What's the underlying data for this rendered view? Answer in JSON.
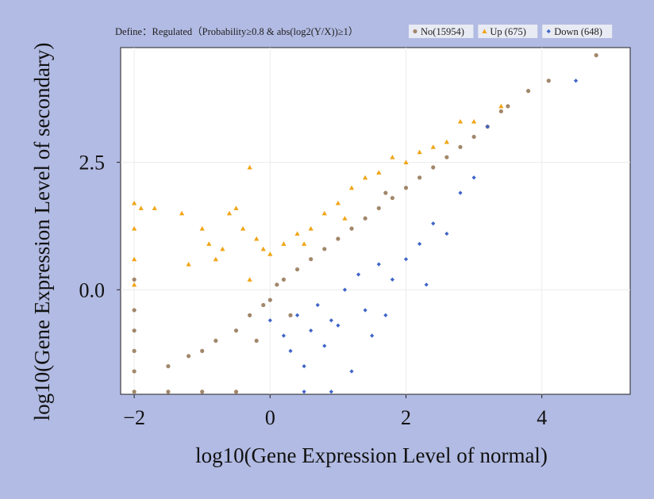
{
  "chart_data": {
    "type": "scatter",
    "title": "Define：Regulated（Probability≥0.8 & abs(log2(Y/X))≥1）",
    "xlabel": "log10(Gene Expression Level of normal)",
    "ylabel": "log10(Gene Expression Level of secondary)",
    "xlim": [
      -2.2,
      5.3
    ],
    "ylim": [
      -2.05,
      4.75
    ],
    "xticks": [
      -2,
      0,
      2,
      4
    ],
    "yticks": [
      0.0,
      2.5
    ],
    "xtick_labels": [
      "−2",
      "0",
      "2",
      "4"
    ],
    "ytick_labels": [
      "0.0",
      "2.5"
    ],
    "grid": true,
    "legend_position": "top-right",
    "series": [
      {
        "name": "No(15954)",
        "color": "#a2876b",
        "marker": "circle",
        "x": [
          -2.0,
          -2.0,
          -2.0,
          -2.0,
          -2.0,
          -2.0,
          -1.5,
          -1.2,
          -1.0,
          -0.8,
          -0.5,
          -0.3,
          -0.1,
          0.0,
          0.1,
          0.2,
          0.4,
          0.6,
          0.8,
          1.0,
          1.2,
          1.4,
          1.6,
          1.8,
          2.0,
          2.2,
          2.4,
          2.6,
          2.8,
          3.0,
          3.2,
          3.4,
          3.5,
          3.8,
          4.1,
          4.8,
          -1.5,
          -1.0,
          -0.5,
          -0.2,
          0.3,
          1.7
        ],
        "y": [
          -0.4,
          -0.8,
          -1.2,
          -1.6,
          -2.0,
          0.2,
          -1.5,
          -1.3,
          -1.2,
          -1.0,
          -0.8,
          -0.5,
          -0.3,
          -0.2,
          0.1,
          0.2,
          0.4,
          0.6,
          0.8,
          1.0,
          1.2,
          1.4,
          1.6,
          1.8,
          2.0,
          2.2,
          2.4,
          2.6,
          2.8,
          3.0,
          3.2,
          3.5,
          3.6,
          3.9,
          4.1,
          4.6,
          -2.0,
          -2.0,
          -2.0,
          -1.0,
          -0.5,
          1.9
        ]
      },
      {
        "name": "Up (675)",
        "color": "#f0a516",
        "marker": "triangle",
        "x": [
          -2.0,
          -2.0,
          -2.0,
          -2.0,
          -1.9,
          -1.7,
          -1.3,
          -1.2,
          -1.0,
          -0.9,
          -0.8,
          -0.7,
          -0.6,
          -0.5,
          -0.4,
          -0.3,
          -0.2,
          -0.1,
          0.0,
          0.2,
          0.4,
          0.6,
          0.8,
          1.0,
          1.2,
          1.4,
          1.6,
          1.8,
          2.0,
          2.2,
          2.4,
          2.6,
          2.8,
          3.0,
          3.4,
          -0.3,
          0.5,
          1.1
        ],
        "y": [
          1.7,
          1.2,
          0.6,
          0.1,
          1.6,
          1.6,
          1.5,
          0.5,
          1.2,
          0.9,
          0.6,
          0.8,
          1.5,
          1.6,
          1.2,
          2.4,
          1.0,
          0.8,
          0.7,
          0.9,
          1.1,
          1.2,
          1.5,
          1.7,
          2.0,
          2.2,
          2.3,
          2.6,
          2.5,
          2.7,
          2.8,
          2.9,
          3.3,
          3.3,
          3.6,
          0.2,
          0.9,
          1.4
        ]
      },
      {
        "name": "Down (648)",
        "color": "#3f64c8",
        "marker": "diamond",
        "x": [
          0.0,
          0.2,
          0.3,
          0.4,
          0.5,
          0.6,
          0.7,
          0.8,
          0.9,
          1.0,
          1.1,
          1.2,
          1.3,
          1.4,
          1.5,
          1.6,
          1.7,
          1.8,
          2.0,
          2.2,
          2.3,
          2.4,
          2.6,
          2.8,
          3.0,
          3.2,
          4.5,
          0.5,
          0.9
        ],
        "y": [
          -0.6,
          -0.9,
          -1.2,
          -0.5,
          -1.5,
          -0.8,
          -0.3,
          -1.1,
          -0.6,
          -0.7,
          0.0,
          -1.6,
          0.3,
          -0.4,
          -0.9,
          0.5,
          -0.5,
          0.2,
          0.6,
          0.9,
          0.1,
          1.3,
          1.1,
          1.9,
          2.2,
          3.2,
          4.1,
          -2.0,
          -2.0
        ]
      }
    ]
  }
}
